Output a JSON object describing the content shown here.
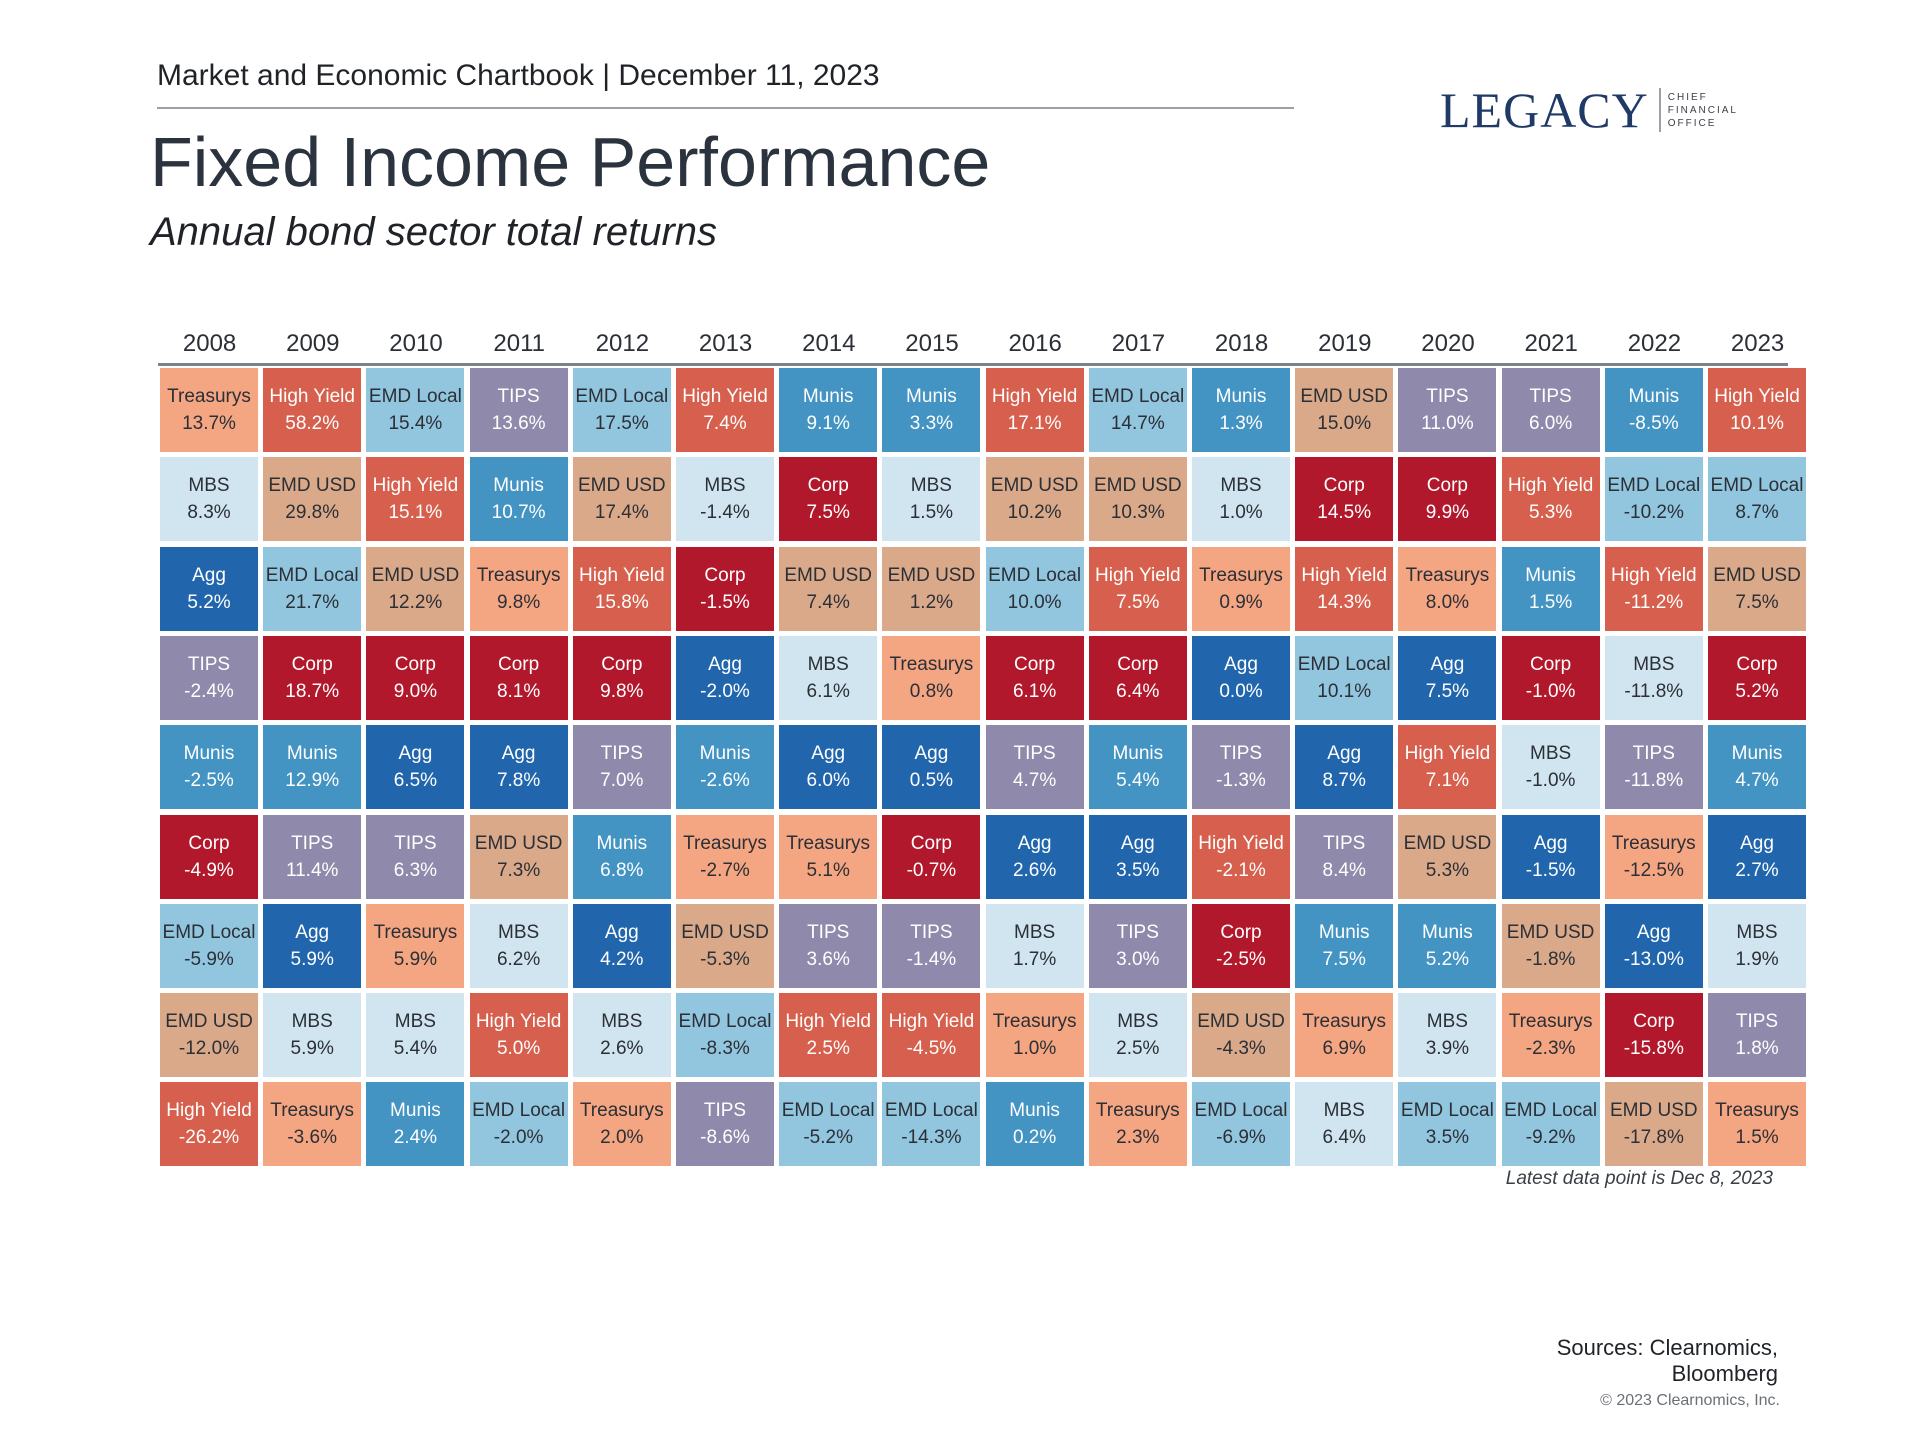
{
  "header": {
    "chartbook": "Market and Economic Chartbook | December 11, 2023",
    "title": "Fixed Income Performance",
    "subtitle": "Annual bond sector total returns"
  },
  "logo": {
    "word": "LEGACY",
    "sub_line_1": "CHIEF",
    "sub_line_2": "FINANCIAL",
    "sub_line_3": "OFFICE"
  },
  "footer": {
    "note": "Latest data point is Dec 8, 2023",
    "sources_line_1": "Sources: Clearnomics,",
    "sources_line_2": "Bloomberg",
    "copyright": "© 2023 Clearnomics, Inc."
  },
  "colors": {
    "Treasurys": "#f4a582",
    "High Yield": "#d6604d",
    "EMD Local": "#92c5de",
    "TIPS": "#8f8aab",
    "Munis": "#4393c3",
    "MBS": "#d1e5f0",
    "EMD USD": "#d9a98a",
    "Agg": "#2166ac",
    "Corp": "#b2182b"
  },
  "text_colors": {
    "Treasurys": "#2b2f36",
    "High Yield": "#ffffff",
    "EMD Local": "#2b2f36",
    "TIPS": "#ffffff",
    "Munis": "#ffffff",
    "MBS": "#2b2f36",
    "EMD USD": "#2b2f36",
    "Agg": "#ffffff",
    "Corp": "#ffffff"
  },
  "chart_data": {
    "type": "table",
    "title": "Fixed Income Performance",
    "subtitle": "Annual bond sector total returns",
    "years": [
      "2008",
      "2009",
      "2010",
      "2011",
      "2012",
      "2013",
      "2014",
      "2015",
      "2016",
      "2017",
      "2018",
      "2019",
      "2020",
      "2021",
      "2022",
      "2023"
    ],
    "columns": [
      [
        [
          "Treasurys",
          "13.7%"
        ],
        [
          "MBS",
          "8.3%"
        ],
        [
          "Agg",
          "5.2%"
        ],
        [
          "TIPS",
          "-2.4%"
        ],
        [
          "Munis",
          "-2.5%"
        ],
        [
          "Corp",
          "-4.9%"
        ],
        [
          "EMD Local",
          "-5.9%"
        ],
        [
          "EMD USD",
          "-12.0%"
        ],
        [
          "High Yield",
          "-26.2%"
        ]
      ],
      [
        [
          "High Yield",
          "58.2%"
        ],
        [
          "EMD USD",
          "29.8%"
        ],
        [
          "EMD Local",
          "21.7%"
        ],
        [
          "Corp",
          "18.7%"
        ],
        [
          "Munis",
          "12.9%"
        ],
        [
          "TIPS",
          "11.4%"
        ],
        [
          "Agg",
          "5.9%"
        ],
        [
          "MBS",
          "5.9%"
        ],
        [
          "Treasurys",
          "-3.6%"
        ]
      ],
      [
        [
          "EMD Local",
          "15.4%"
        ],
        [
          "High Yield",
          "15.1%"
        ],
        [
          "EMD USD",
          "12.2%"
        ],
        [
          "Corp",
          "9.0%"
        ],
        [
          "Agg",
          "6.5%"
        ],
        [
          "TIPS",
          "6.3%"
        ],
        [
          "Treasurys",
          "5.9%"
        ],
        [
          "MBS",
          "5.4%"
        ],
        [
          "Munis",
          "2.4%"
        ]
      ],
      [
        [
          "TIPS",
          "13.6%"
        ],
        [
          "Munis",
          "10.7%"
        ],
        [
          "Treasurys",
          "9.8%"
        ],
        [
          "Corp",
          "8.1%"
        ],
        [
          "Agg",
          "7.8%"
        ],
        [
          "EMD USD",
          "7.3%"
        ],
        [
          "MBS",
          "6.2%"
        ],
        [
          "High Yield",
          "5.0%"
        ],
        [
          "EMD Local",
          "-2.0%"
        ]
      ],
      [
        [
          "EMD Local",
          "17.5%"
        ],
        [
          "EMD USD",
          "17.4%"
        ],
        [
          "High Yield",
          "15.8%"
        ],
        [
          "Corp",
          "9.8%"
        ],
        [
          "TIPS",
          "7.0%"
        ],
        [
          "Munis",
          "6.8%"
        ],
        [
          "Agg",
          "4.2%"
        ],
        [
          "MBS",
          "2.6%"
        ],
        [
          "Treasurys",
          "2.0%"
        ]
      ],
      [
        [
          "High Yield",
          "7.4%"
        ],
        [
          "MBS",
          "-1.4%"
        ],
        [
          "Corp",
          "-1.5%"
        ],
        [
          "Agg",
          "-2.0%"
        ],
        [
          "Munis",
          "-2.6%"
        ],
        [
          "Treasurys",
          "-2.7%"
        ],
        [
          "EMD USD",
          "-5.3%"
        ],
        [
          "EMD Local",
          "-8.3%"
        ],
        [
          "TIPS",
          "-8.6%"
        ]
      ],
      [
        [
          "Munis",
          "9.1%"
        ],
        [
          "Corp",
          "7.5%"
        ],
        [
          "EMD USD",
          "7.4%"
        ],
        [
          "MBS",
          "6.1%"
        ],
        [
          "Agg",
          "6.0%"
        ],
        [
          "Treasurys",
          "5.1%"
        ],
        [
          "TIPS",
          "3.6%"
        ],
        [
          "High Yield",
          "2.5%"
        ],
        [
          "EMD Local",
          "-5.2%"
        ]
      ],
      [
        [
          "Munis",
          "3.3%"
        ],
        [
          "MBS",
          "1.5%"
        ],
        [
          "EMD USD",
          "1.2%"
        ],
        [
          "Treasurys",
          "0.8%"
        ],
        [
          "Agg",
          "0.5%"
        ],
        [
          "Corp",
          "-0.7%"
        ],
        [
          "TIPS",
          "-1.4%"
        ],
        [
          "High Yield",
          "-4.5%"
        ],
        [
          "EMD Local",
          "-14.3%"
        ]
      ],
      [
        [
          "High Yield",
          "17.1%"
        ],
        [
          "EMD USD",
          "10.2%"
        ],
        [
          "EMD Local",
          "10.0%"
        ],
        [
          "Corp",
          "6.1%"
        ],
        [
          "TIPS",
          "4.7%"
        ],
        [
          "Agg",
          "2.6%"
        ],
        [
          "MBS",
          "1.7%"
        ],
        [
          "Treasurys",
          "1.0%"
        ],
        [
          "Munis",
          "0.2%"
        ]
      ],
      [
        [
          "EMD Local",
          "14.7%"
        ],
        [
          "EMD USD",
          "10.3%"
        ],
        [
          "High Yield",
          "7.5%"
        ],
        [
          "Corp",
          "6.4%"
        ],
        [
          "Munis",
          "5.4%"
        ],
        [
          "Agg",
          "3.5%"
        ],
        [
          "TIPS",
          "3.0%"
        ],
        [
          "MBS",
          "2.5%"
        ],
        [
          "Treasurys",
          "2.3%"
        ]
      ],
      [
        [
          "Munis",
          "1.3%"
        ],
        [
          "MBS",
          "1.0%"
        ],
        [
          "Treasurys",
          "0.9%"
        ],
        [
          "Agg",
          "0.0%"
        ],
        [
          "TIPS",
          "-1.3%"
        ],
        [
          "High Yield",
          "-2.1%"
        ],
        [
          "Corp",
          "-2.5%"
        ],
        [
          "EMD USD",
          "-4.3%"
        ],
        [
          "EMD Local",
          "-6.9%"
        ]
      ],
      [
        [
          "EMD USD",
          "15.0%"
        ],
        [
          "Corp",
          "14.5%"
        ],
        [
          "High Yield",
          "14.3%"
        ],
        [
          "EMD Local",
          "10.1%"
        ],
        [
          "Agg",
          "8.7%"
        ],
        [
          "TIPS",
          "8.4%"
        ],
        [
          "Munis",
          "7.5%"
        ],
        [
          "Treasurys",
          "6.9%"
        ],
        [
          "MBS",
          "6.4%"
        ]
      ],
      [
        [
          "TIPS",
          "11.0%"
        ],
        [
          "Corp",
          "9.9%"
        ],
        [
          "Treasurys",
          "8.0%"
        ],
        [
          "Agg",
          "7.5%"
        ],
        [
          "High Yield",
          "7.1%"
        ],
        [
          "EMD USD",
          "5.3%"
        ],
        [
          "Munis",
          "5.2%"
        ],
        [
          "MBS",
          "3.9%"
        ],
        [
          "EMD Local",
          "3.5%"
        ]
      ],
      [
        [
          "TIPS",
          "6.0%"
        ],
        [
          "High Yield",
          "5.3%"
        ],
        [
          "Munis",
          "1.5%"
        ],
        [
          "Corp",
          "-1.0%"
        ],
        [
          "MBS",
          "-1.0%"
        ],
        [
          "Agg",
          "-1.5%"
        ],
        [
          "EMD USD",
          "-1.8%"
        ],
        [
          "Treasurys",
          "-2.3%"
        ],
        [
          "EMD Local",
          "-9.2%"
        ]
      ],
      [
        [
          "Munis",
          "-8.5%"
        ],
        [
          "EMD Local",
          "-10.2%"
        ],
        [
          "High Yield",
          "-11.2%"
        ],
        [
          "MBS",
          "-11.8%"
        ],
        [
          "TIPS",
          "-11.8%"
        ],
        [
          "Treasurys",
          "-12.5%"
        ],
        [
          "Agg",
          "-13.0%"
        ],
        [
          "Corp",
          "-15.8%"
        ],
        [
          "EMD USD",
          "-17.8%"
        ]
      ],
      [
        [
          "High Yield",
          "10.1%"
        ],
        [
          "EMD Local",
          "8.7%"
        ],
        [
          "EMD USD",
          "7.5%"
        ],
        [
          "Corp",
          "5.2%"
        ],
        [
          "Munis",
          "4.7%"
        ],
        [
          "Agg",
          "2.7%"
        ],
        [
          "MBS",
          "1.9%"
        ],
        [
          "TIPS",
          "1.8%"
        ],
        [
          "Treasurys",
          "1.5%"
        ]
      ]
    ]
  }
}
